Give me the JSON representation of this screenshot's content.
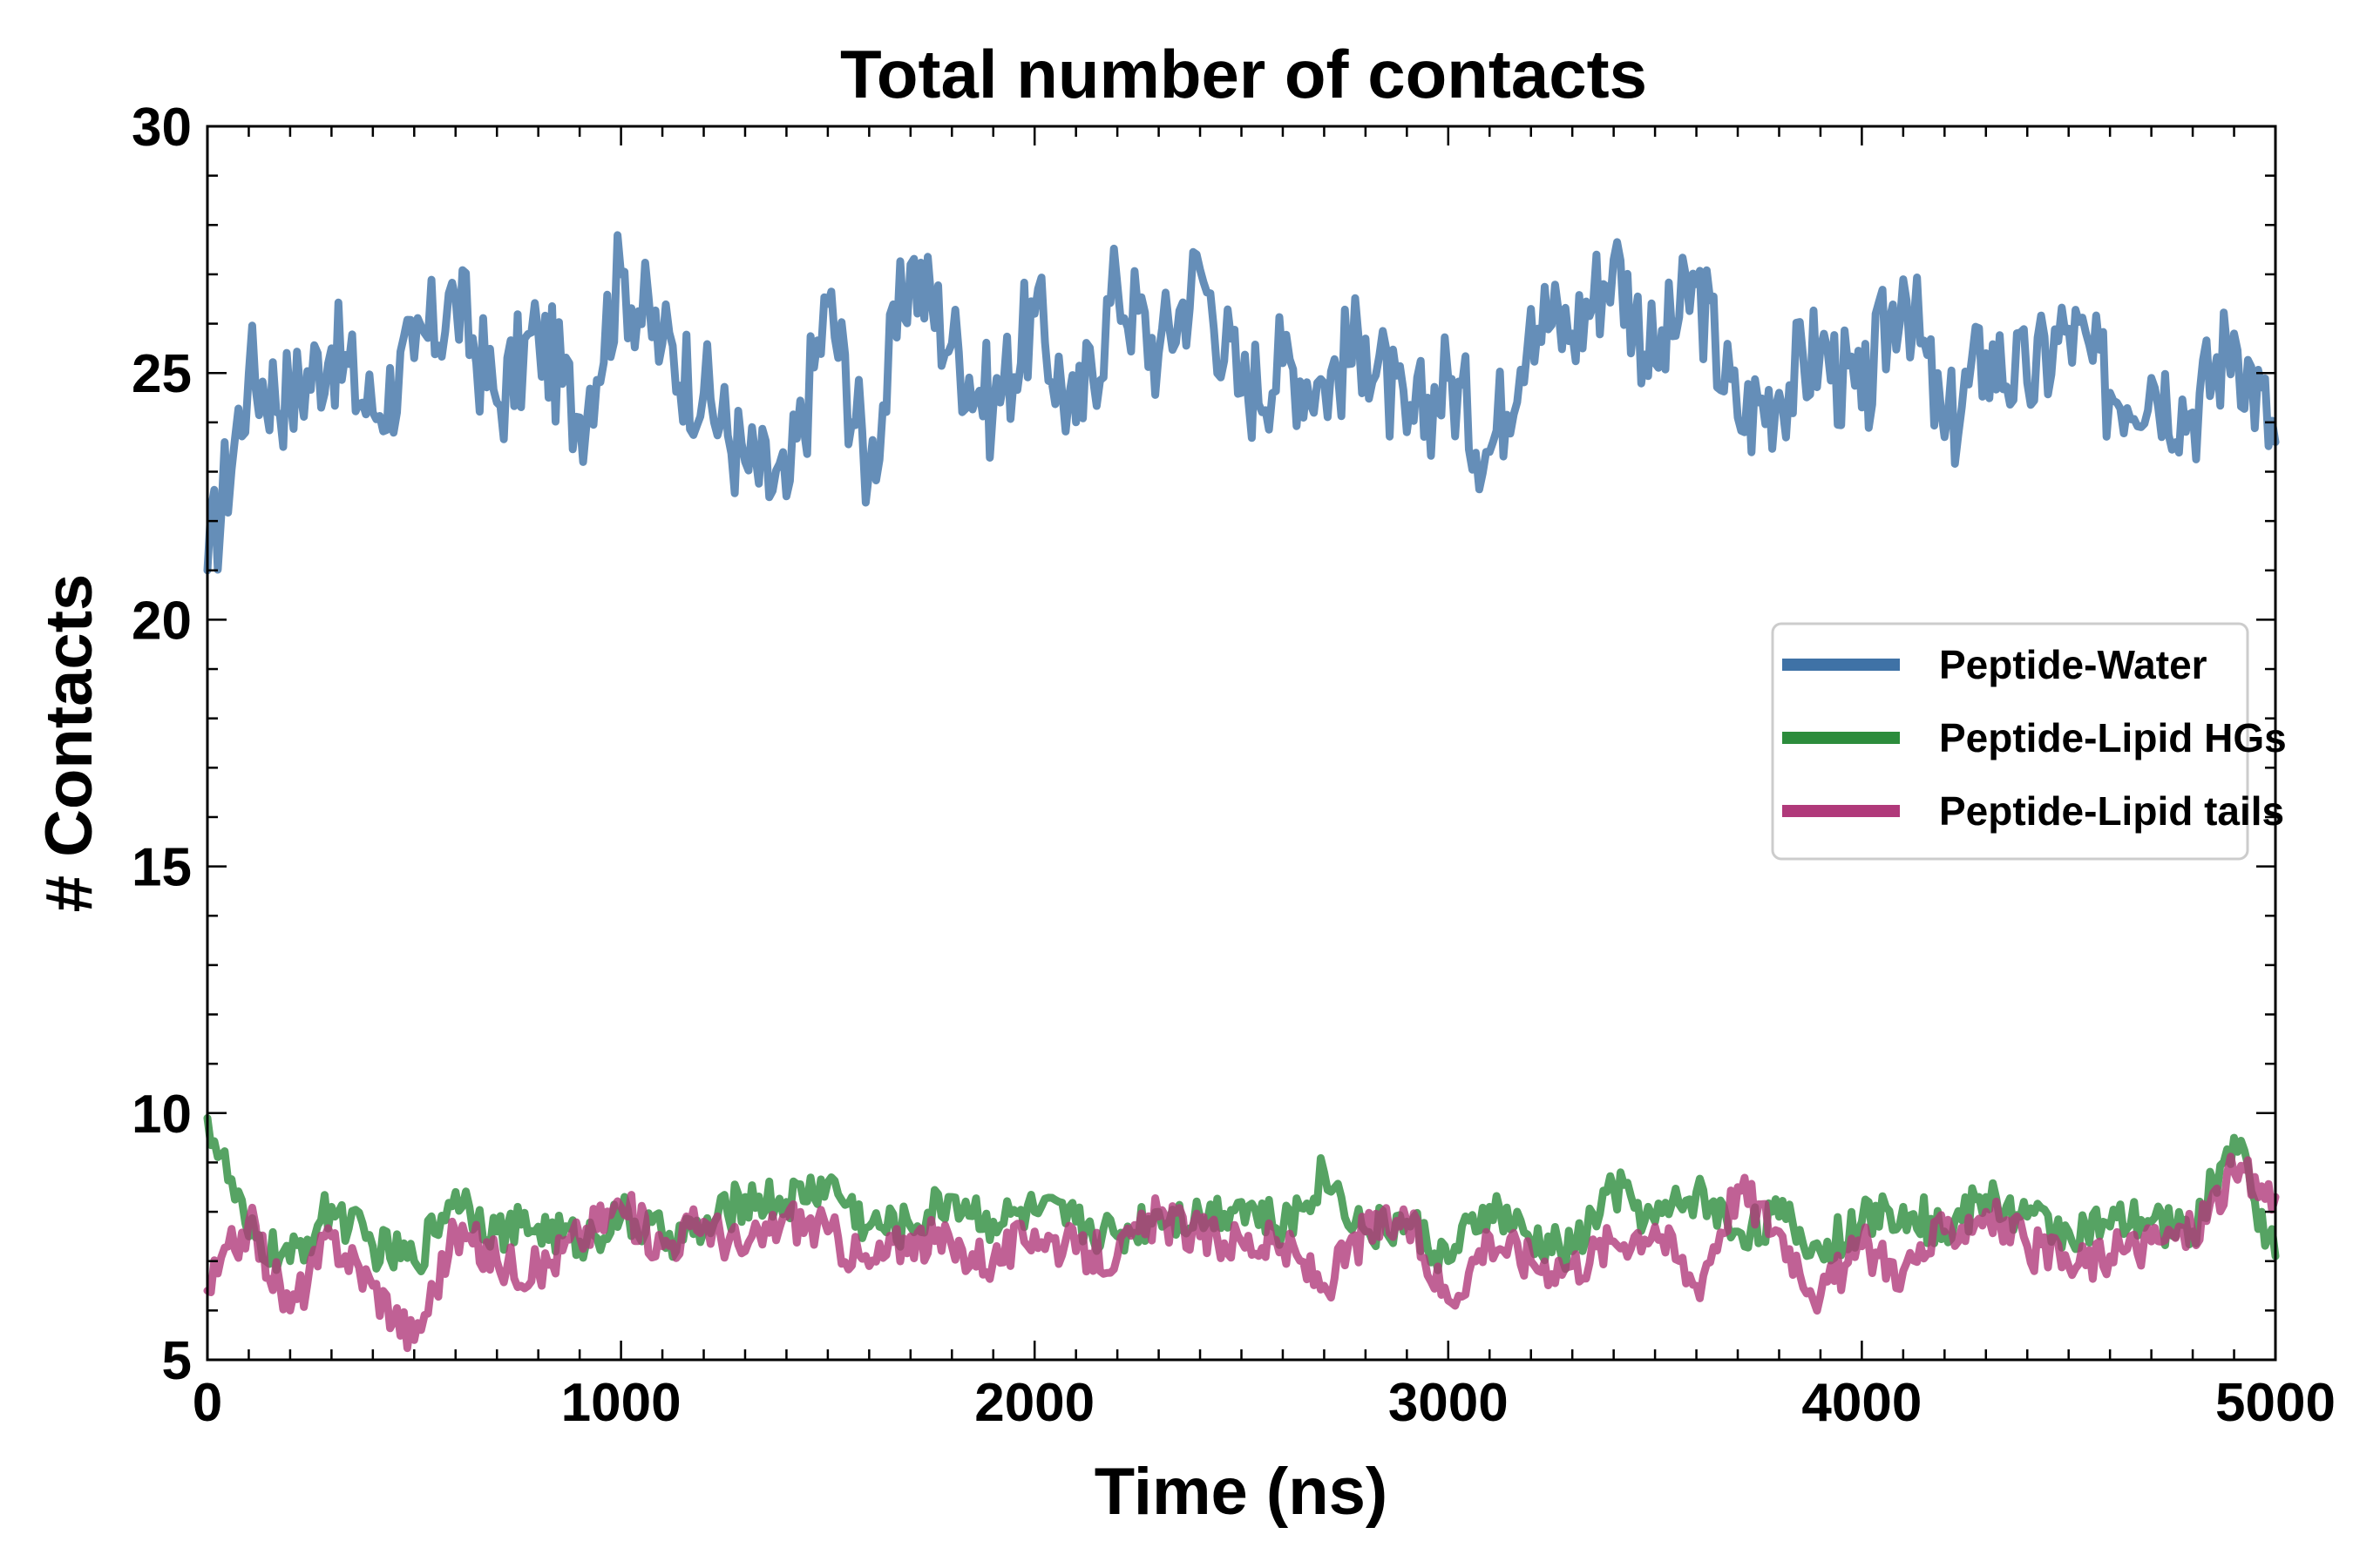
{
  "chart_data": {
    "type": "line",
    "title": "Total number of contacts",
    "xlabel": "Time (ns)",
    "ylabel": "# Contacts",
    "xlim": [
      0,
      5000
    ],
    "ylim": [
      5,
      30
    ],
    "xticks": [
      0,
      1000,
      2000,
      3000,
      4000,
      5000
    ],
    "yticks": [
      5,
      10,
      15,
      20,
      25,
      30
    ],
    "grid": false,
    "legend_position": "center-right",
    "series": [
      {
        "name": "Peptide-Water",
        "color": "#3f72a6",
        "x": [
          0,
          100,
          200,
          300,
          400,
          500,
          600,
          700,
          800,
          900,
          1000,
          1100,
          1200,
          1300,
          1400,
          1500,
          1600,
          1700,
          1800,
          1900,
          2000,
          2100,
          2200,
          2300,
          2400,
          2500,
          2600,
          2700,
          2800,
          2900,
          3000,
          3100,
          3200,
          3300,
          3400,
          3500,
          3600,
          3700,
          3800,
          3900,
          4000,
          4100,
          4200,
          4300,
          4400,
          4500,
          4600,
          4700,
          4800,
          4900,
          5000
        ],
        "y": [
          21.0,
          25.0,
          24.5,
          25.5,
          24.2,
          25.3,
          26.5,
          24.4,
          25.8,
          24.1,
          27.0,
          25.6,
          24.6,
          23.2,
          22.5,
          26.4,
          23.0,
          27.2,
          25.6,
          24.3,
          26.2,
          24.0,
          26.8,
          25.4,
          27.1,
          24.6,
          25.2,
          24.8,
          25.7,
          23.8,
          24.9,
          23.4,
          26.3,
          25.8,
          27.3,
          25.2,
          26.8,
          24.1,
          24.6,
          25.5,
          24.3,
          26.9,
          23.7,
          25.4,
          24.8,
          25.9,
          24.6,
          24.9,
          24.2,
          25.8,
          23.6
        ]
      },
      {
        "name": "Peptide-Lipid HGs",
        "color": "#2c8c3c",
        "x": [
          0,
          100,
          200,
          300,
          400,
          500,
          600,
          700,
          800,
          900,
          1000,
          1100,
          1200,
          1300,
          1400,
          1500,
          1600,
          1700,
          1800,
          1900,
          2000,
          2100,
          2200,
          2300,
          2400,
          2500,
          2600,
          2700,
          2800,
          2900,
          3000,
          3100,
          3200,
          3300,
          3400,
          3500,
          3600,
          3700,
          3800,
          3900,
          4000,
          4100,
          4200,
          4300,
          4400,
          4500,
          4600,
          4700,
          4800,
          4900,
          5000
        ],
        "y": [
          9.9,
          7.5,
          7.0,
          8.1,
          7.3,
          7.0,
          8.4,
          7.6,
          7.7,
          7.4,
          7.9,
          7.5,
          7.6,
          8.3,
          8.2,
          8.6,
          7.7,
          7.7,
          8.3,
          7.8,
          8.0,
          7.8,
          7.5,
          8.0,
          7.9,
          8.2,
          7.6,
          8.8,
          7.6,
          7.8,
          7.0,
          8.1,
          7.4,
          7.2,
          8.5,
          7.8,
          8.4,
          7.6,
          7.9,
          7.2,
          7.8,
          8.1,
          7.6,
          8.3,
          7.9,
          7.6,
          7.7,
          7.8,
          7.6,
          9.5,
          7.1
        ]
      },
      {
        "name": "Peptide-Lipid tails",
        "color": "#b0397a",
        "x": [
          0,
          100,
          200,
          300,
          400,
          500,
          600,
          700,
          800,
          900,
          1000,
          1100,
          1200,
          1300,
          1400,
          1500,
          1600,
          1700,
          1800,
          1900,
          2000,
          2100,
          2200,
          2300,
          2400,
          2500,
          2600,
          2700,
          2800,
          2900,
          3000,
          3100,
          3200,
          3300,
          3400,
          3500,
          3600,
          3700,
          3800,
          3900,
          4000,
          4100,
          4200,
          4300,
          4400,
          4500,
          4600,
          4700,
          4800,
          4900,
          5000
        ],
        "y": [
          6.4,
          7.8,
          6.0,
          7.5,
          6.5,
          5.4,
          7.6,
          7.0,
          6.8,
          7.5,
          8.1,
          7.3,
          7.8,
          7.2,
          7.9,
          7.6,
          6.9,
          7.5,
          7.3,
          7.0,
          7.6,
          7.2,
          7.1,
          7.9,
          7.5,
          7.4,
          7.3,
          6.5,
          7.6,
          7.8,
          6.2,
          7.5,
          7.0,
          6.9,
          7.4,
          7.7,
          6.5,
          8.5,
          7.6,
          6.3,
          7.3,
          6.8,
          7.6,
          8.0,
          7.3,
          6.9,
          7.1,
          7.4,
          7.6,
          8.8,
          8.3
        ]
      }
    ]
  }
}
